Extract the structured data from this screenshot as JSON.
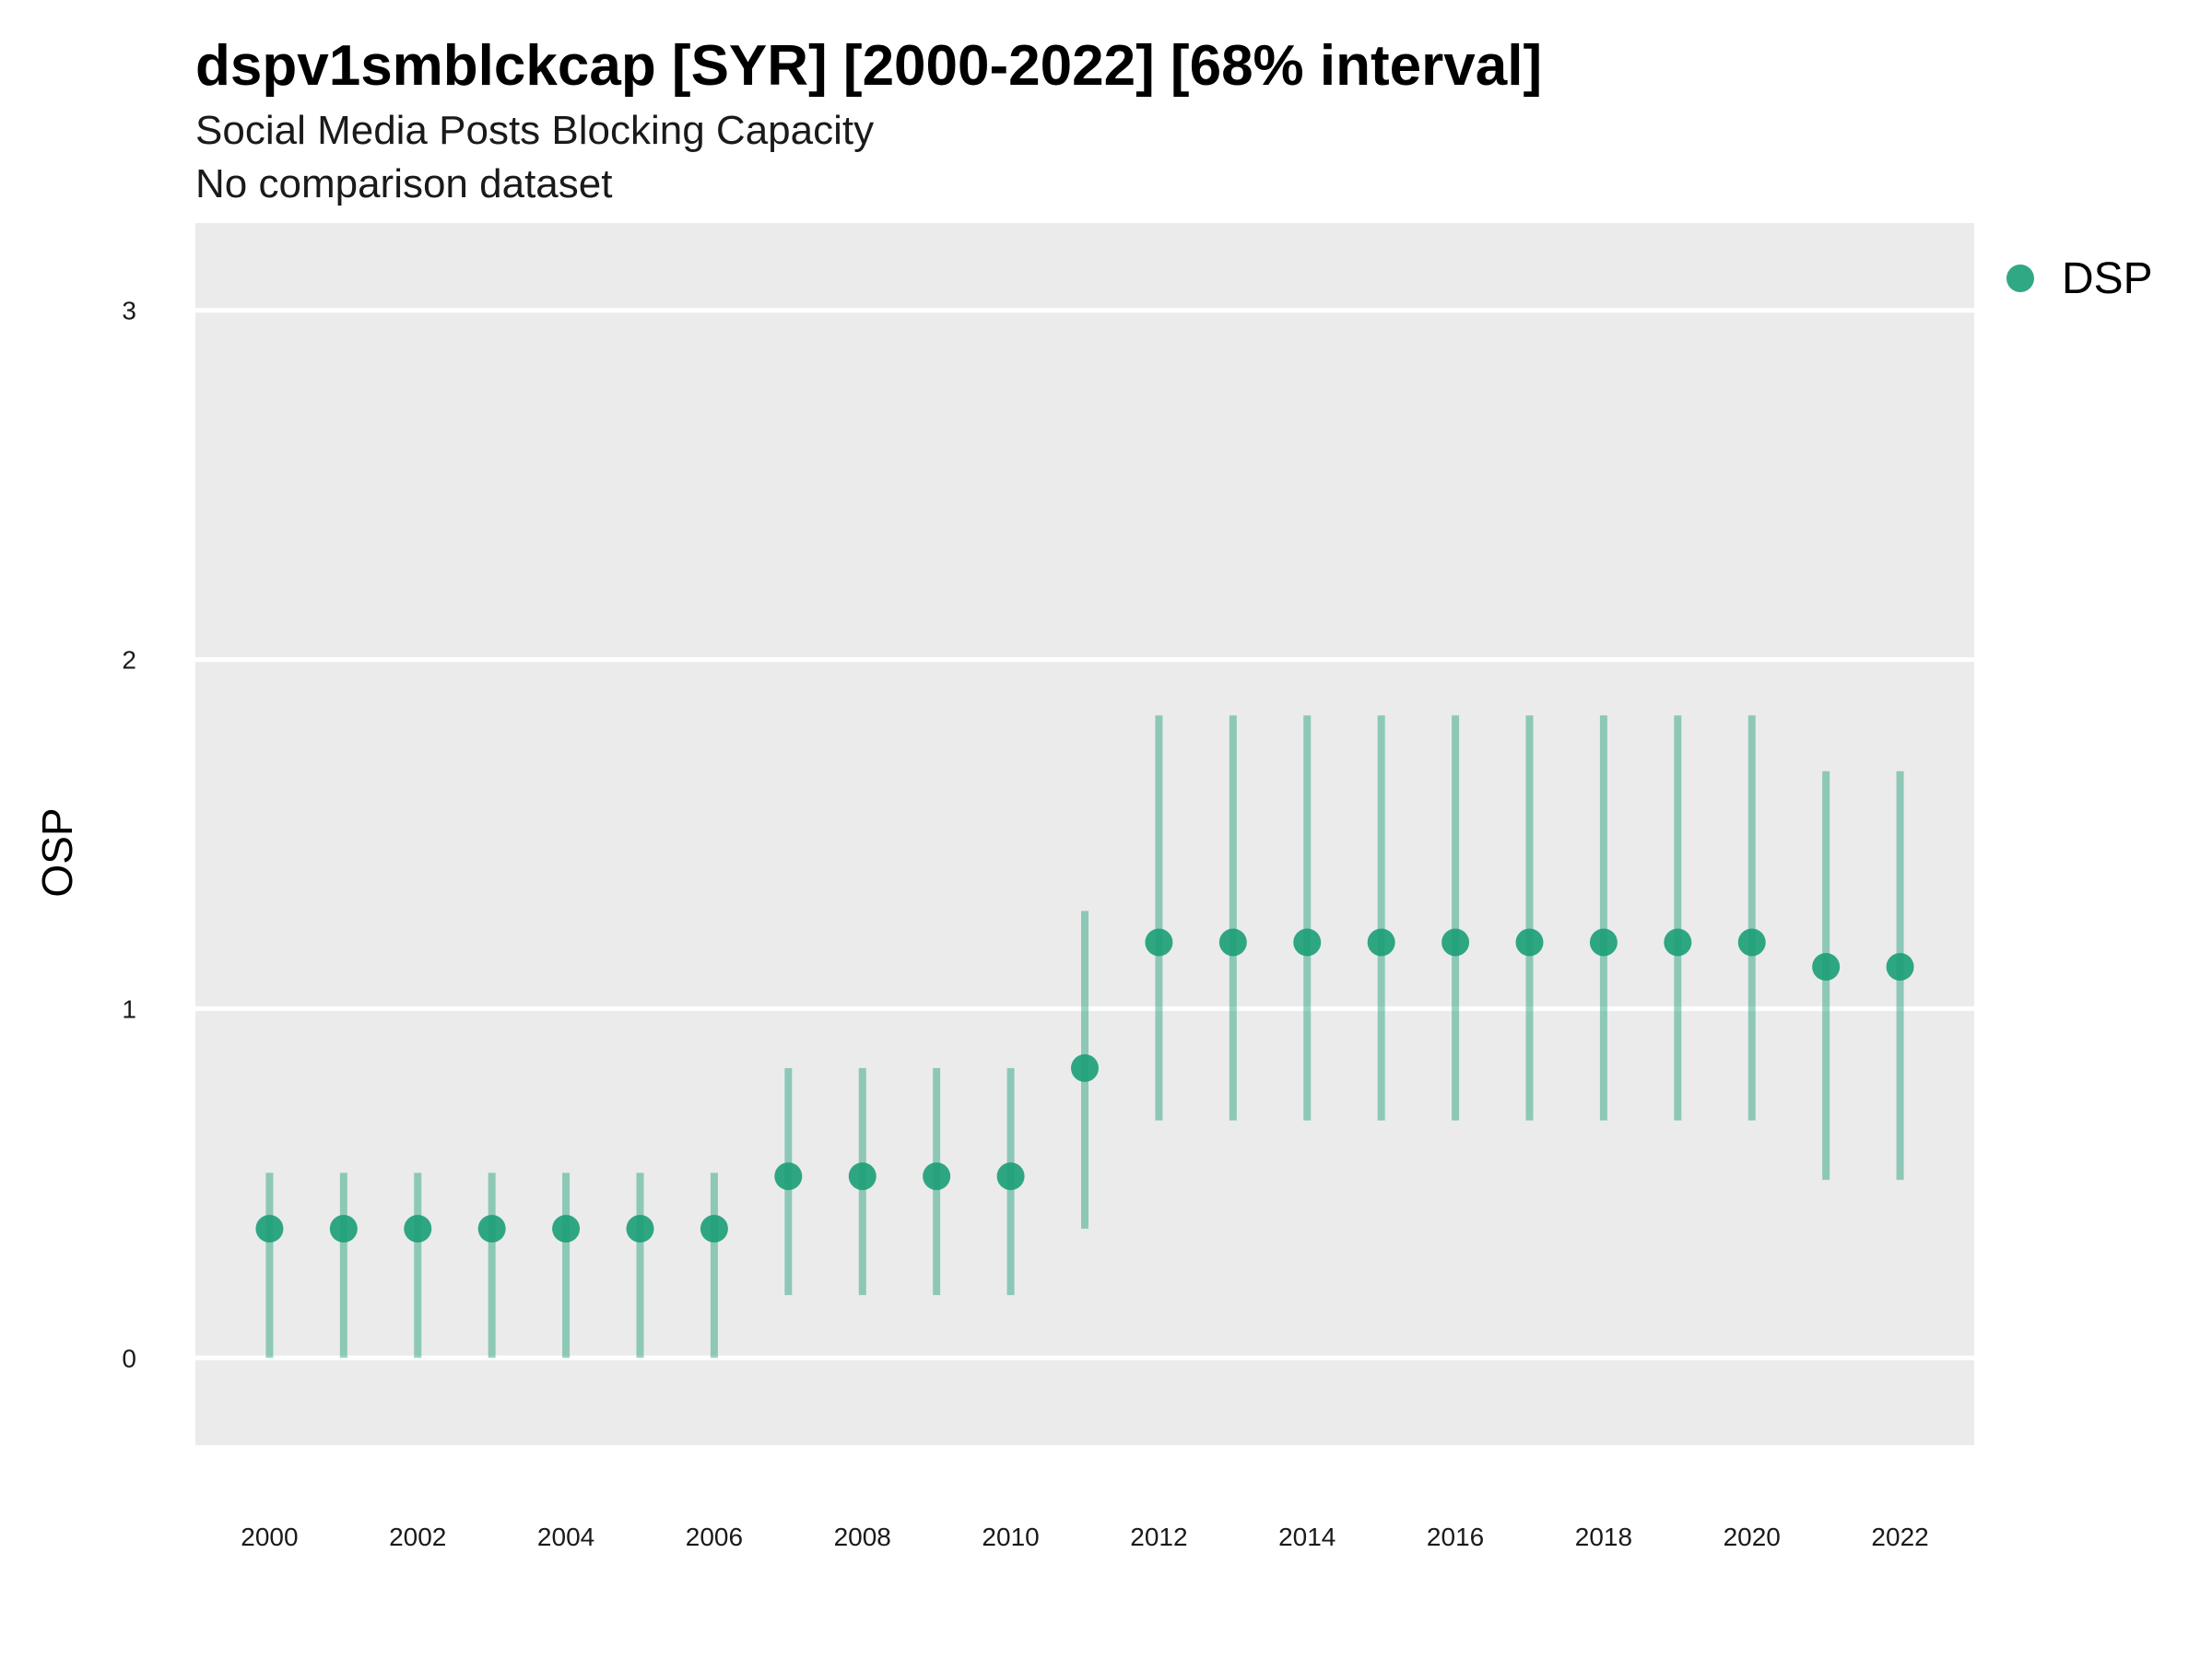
{
  "chart_data": {
    "type": "scatter",
    "title": "dspv1smblckcap [SYR] [2000-2022] [68% interval]",
    "subtitle": "Social Media Posts Blocking Capacity",
    "subtitle2": "No comparison dataset",
    "xlabel": "",
    "ylabel": "OSP",
    "xlim": [
      1999,
      2023
    ],
    "ylim": [
      -0.25,
      3.25
    ],
    "x_ticks": [
      "2000",
      "2002",
      "2004",
      "2006",
      "2008",
      "2010",
      "2012",
      "2014",
      "2016",
      "2018",
      "2020",
      "2022"
    ],
    "y_ticks": [
      "0",
      "1",
      "2",
      "3"
    ],
    "grid": true,
    "legend_position": "top-right",
    "colors": {
      "series": "#1b9e77",
      "panel": "#ebebeb",
      "grid": "#ffffff"
    },
    "series": [
      {
        "name": "DSP",
        "x": [
          2000,
          2001,
          2002,
          2003,
          2004,
          2005,
          2006,
          2007,
          2008,
          2009,
          2010,
          2011,
          2012,
          2013,
          2014,
          2015,
          2016,
          2017,
          2018,
          2019,
          2020,
          2021,
          2022
        ],
        "y": [
          0.37,
          0.37,
          0.37,
          0.37,
          0.37,
          0.37,
          0.37,
          0.52,
          0.52,
          0.52,
          0.52,
          0.83,
          1.19,
          1.19,
          1.19,
          1.19,
          1.19,
          1.19,
          1.19,
          1.19,
          1.19,
          1.12,
          1.12
        ],
        "lower": [
          0.0,
          0.0,
          0.0,
          0.0,
          0.0,
          0.0,
          0.0,
          0.18,
          0.18,
          0.18,
          0.18,
          0.37,
          0.68,
          0.68,
          0.68,
          0.68,
          0.68,
          0.68,
          0.68,
          0.68,
          0.68,
          0.51,
          0.51
        ],
        "upper": [
          0.53,
          0.53,
          0.53,
          0.53,
          0.53,
          0.53,
          0.53,
          0.83,
          0.83,
          0.83,
          0.83,
          1.28,
          1.84,
          1.84,
          1.84,
          1.84,
          1.84,
          1.84,
          1.84,
          1.84,
          1.84,
          1.68,
          1.68
        ]
      }
    ]
  }
}
